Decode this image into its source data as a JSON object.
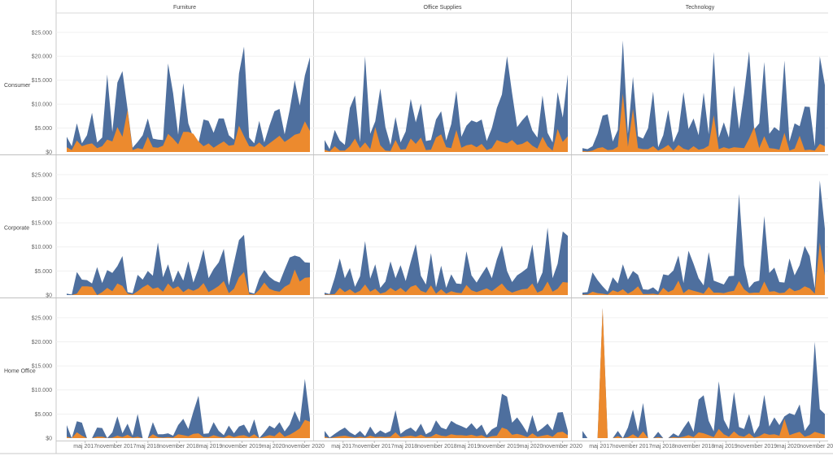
{
  "chart_data": {
    "type": "area",
    "title": "",
    "column_headers": [
      "Furniture",
      "Office Supplies",
      "Technology"
    ],
    "row_headers": [
      "Consumer",
      "Corporate",
      "Home Office"
    ],
    "y_ticks": [
      "$25.000",
      "$20.000",
      "$15.000",
      "$10.000",
      "$5.000",
      "$0"
    ],
    "ylim": [
      0,
      27000
    ],
    "x_ticks": [
      "maj 2017",
      "november 2017",
      "maj 2018",
      "november 2018",
      "maj 2019",
      "november 2019",
      "maj 2020",
      "november 2020"
    ],
    "x_range": [
      "2017-01",
      "2020-12"
    ],
    "series_colors": {
      "total": "#4e6f9e",
      "part": "#ec8a2e"
    },
    "panels": [
      {
        "row": "Consumer",
        "column": "Furniture",
        "total": [
          3200,
          1200,
          6000,
          1800,
          3500,
          8200,
          2000,
          3000,
          16200,
          4200,
          14500,
          16900,
          9000,
          900,
          2100,
          3500,
          7000,
          2800,
          2600,
          2500,
          18500,
          12300,
          3600,
          14400,
          6000,
          3000,
          1900,
          6800,
          6500,
          4000,
          7000,
          7000,
          3500,
          2600,
          16400,
          22000,
          3000,
          1800,
          6500,
          2000,
          5500,
          8500,
          9000,
          3700,
          8800,
          15000,
          9700,
          16000,
          19800
        ],
        "part": [
          1000,
          400,
          2400,
          1200,
          1600,
          1800,
          800,
          1200,
          2600,
          2200,
          5200,
          3200,
          8800,
          400,
          800,
          600,
          3200,
          1000,
          900,
          1300,
          3800,
          2800,
          1600,
          4200,
          4200,
          3800,
          2200,
          1200,
          1800,
          900,
          1600,
          2200,
          1300,
          1500,
          5500,
          3300,
          1200,
          1100,
          2000,
          1000,
          1800,
          2600,
          3400,
          2100,
          2800,
          3600,
          3900,
          6400,
          4400
        ]
      },
      {
        "row": "Consumer",
        "column": "Office Supplies",
        "total": [
          2500,
          600,
          4600,
          2400,
          1500,
          9200,
          11800,
          2100,
          20000,
          3800,
          6400,
          13300,
          5200,
          1500,
          7300,
          2000,
          4300,
          11100,
          6200,
          10100,
          2300,
          2500,
          6800,
          8500,
          2400,
          5800,
          12800,
          3200,
          5500,
          6600,
          6200,
          6800,
          2300,
          5000,
          9200,
          12000,
          20000,
          12300,
          5200,
          6600,
          7800,
          4500,
          3000,
          11800,
          4000,
          2000,
          12500,
          7200,
          16200
        ],
        "part": [
          500,
          100,
          1200,
          300,
          300,
          1200,
          2800,
          800,
          2000,
          600,
          5200,
          1400,
          300,
          200,
          2500,
          500,
          600,
          2800,
          1700,
          3000,
          400,
          500,
          3000,
          3700,
          1000,
          800,
          4600,
          900,
          1400,
          1600,
          1000,
          1700,
          400,
          800,
          2500,
          2100,
          1800,
          2500,
          1500,
          1700,
          2300,
          1300,
          700,
          3200,
          1200,
          300,
          4800,
          2100,
          3300
        ]
      },
      {
        "row": "Consumer",
        "column": "Technology",
        "total": [
          800,
          600,
          1200,
          3800,
          7600,
          7900,
          2200,
          4600,
          23300,
          3800,
          15700,
          3300,
          2800,
          5000,
          12600,
          1000,
          3500,
          8800,
          2000,
          4400,
          12500,
          4800,
          7000,
          3500,
          12400,
          3700,
          20900,
          3000,
          6200,
          3000,
          13900,
          4800,
          12300,
          21000,
          4700,
          6000,
          18800,
          3800,
          5200,
          4400,
          19100,
          2200,
          6000,
          5400,
          9500,
          9400,
          1200,
          20000,
          14000
        ],
        "part": [
          200,
          100,
          300,
          800,
          1000,
          400,
          500,
          1100,
          12200,
          1100,
          9000,
          800,
          600,
          600,
          1200,
          300,
          800,
          1500,
          300,
          1500,
          700,
          400,
          1200,
          500,
          700,
          1300,
          7700,
          600,
          1000,
          700,
          1000,
          900,
          800,
          2800,
          5200,
          800,
          3300,
          800,
          700,
          500,
          4000,
          300,
          700,
          3400,
          400,
          500,
          300,
          1700,
          1200
        ]
      },
      {
        "row": "Corporate",
        "column": "Furniture",
        "total": [
          300,
          100,
          4800,
          3200,
          3100,
          2400,
          5800,
          2500,
          5200,
          4600,
          6000,
          8100,
          600,
          400,
          4200,
          3200,
          5000,
          4000,
          10900,
          3700,
          6400,
          2600,
          5100,
          3000,
          7000,
          2600,
          5600,
          9500,
          3500,
          5400,
          6800,
          9600,
          2000,
          6700,
          11400,
          12500,
          600,
          300,
          3400,
          5200,
          3800,
          3000,
          2600,
          5300,
          7800,
          8200,
          7900,
          6800,
          6700
        ],
        "part": [
          0,
          0,
          300,
          1800,
          1800,
          1700,
          0,
          600,
          1500,
          800,
          2400,
          1900,
          300,
          100,
          800,
          1600,
          2200,
          1300,
          1600,
          700,
          2400,
          1300,
          1800,
          600,
          1300,
          900,
          1400,
          2500,
          600,
          1200,
          1900,
          2900,
          400,
          1300,
          3700,
          4800,
          200,
          100,
          1100,
          2600,
          1300,
          900,
          700,
          1700,
          2300,
          5300,
          2800,
          3600,
          3700
        ]
      },
      {
        "row": "Corporate",
        "column": "Office Supplies",
        "total": [
          500,
          200,
          3600,
          7600,
          3500,
          5600,
          1700,
          3900,
          11200,
          3400,
          6400,
          1500,
          2800,
          7000,
          3500,
          6200,
          2900,
          6900,
          10600,
          4000,
          2200,
          8700,
          1600,
          6100,
          1500,
          4300,
          2400,
          2300,
          9100,
          4100,
          2600,
          4300,
          5900,
          3500,
          7400,
          10300,
          5000,
          2700,
          4100,
          4800,
          5600,
          10500,
          2300,
          4700,
          14000,
          3500,
          6500,
          13200,
          12300
        ],
        "part": [
          100,
          100,
          200,
          1500,
          600,
          1200,
          400,
          900,
          2200,
          700,
          1300,
          300,
          600,
          1500,
          800,
          1500,
          600,
          1700,
          2100,
          900,
          500,
          2000,
          300,
          1200,
          300,
          800,
          500,
          400,
          2100,
          1000,
          600,
          1000,
          1400,
          800,
          1600,
          2400,
          1100,
          500,
          900,
          1200,
          1300,
          2400,
          500,
          1000,
          2800,
          700,
          1300,
          2700,
          2600
        ]
      },
      {
        "row": "Corporate",
        "column": "Technology",
        "total": [
          500,
          600,
          4700,
          3100,
          1800,
          700,
          3700,
          2400,
          6400,
          3200,
          5000,
          4200,
          1200,
          1100,
          1600,
          700,
          4300,
          4100,
          5100,
          8200,
          2500,
          9200,
          6500,
          3500,
          2000,
          8900,
          3000,
          2600,
          2200,
          3900,
          4000,
          21000,
          6200,
          1500,
          2700,
          3000,
          16400,
          4600,
          5700,
          2700,
          2600,
          7600,
          4100,
          6200,
          10200,
          8100,
          1400,
          23800,
          13800
        ],
        "part": [
          100,
          100,
          700,
          400,
          300,
          100,
          1000,
          600,
          1200,
          300,
          900,
          1800,
          200,
          200,
          300,
          100,
          1500,
          600,
          1100,
          3000,
          400,
          1200,
          900,
          600,
          300,
          1700,
          500,
          500,
          400,
          700,
          900,
          2900,
          1200,
          400,
          500,
          500,
          2800,
          700,
          800,
          400,
          500,
          1500,
          800,
          1100,
          1800,
          1400,
          300,
          10900,
          4000
        ]
      },
      {
        "row": "Home Office",
        "column": "Furniture",
        "total": [
          2700,
          0,
          3500,
          3200,
          0,
          0,
          2200,
          2100,
          0,
          1200,
          4500,
          1000,
          3000,
          500,
          5000,
          0,
          0,
          3300,
          800,
          800,
          1000,
          500,
          2700,
          4000,
          1900,
          5500,
          8800,
          900,
          1000,
          3300,
          1500,
          600,
          2600,
          1000,
          2400,
          2800,
          1000,
          3900,
          0,
          1200,
          2600,
          2000,
          3300,
          1400,
          2800,
          5600,
          3300,
          12300,
          4000
        ],
        "part": [
          300,
          0,
          1200,
          500,
          0,
          0,
          300,
          300,
          0,
          100,
          500,
          200,
          700,
          100,
          300,
          0,
          0,
          800,
          200,
          100,
          200,
          100,
          800,
          600,
          400,
          900,
          1000,
          200,
          200,
          600,
          300,
          100,
          600,
          200,
          500,
          600,
          200,
          800,
          0,
          300,
          600,
          400,
          1300,
          300,
          700,
          1300,
          2000,
          3800,
          3400
        ]
      },
      {
        "row": "Home Office",
        "column": "Office Supplies",
        "total": [
          1500,
          100,
          900,
          1600,
          2200,
          1200,
          600,
          1500,
          400,
          2400,
          800,
          1600,
          1000,
          1500,
          5800,
          900,
          1700,
          2200,
          1300,
          3000,
          800,
          1400,
          3700,
          2200,
          1800,
          3600,
          2900,
          2500,
          2000,
          3100,
          1800,
          2800,
          600,
          1800,
          2400,
          9200,
          8600,
          3200,
          4300,
          2800,
          1100,
          4800,
          1300,
          2100,
          3000,
          1600,
          5300,
          5400,
          1500
        ],
        "part": [
          300,
          0,
          200,
          400,
          500,
          300,
          100,
          300,
          100,
          500,
          200,
          300,
          200,
          300,
          1200,
          200,
          400,
          500,
          300,
          700,
          200,
          300,
          900,
          500,
          400,
          800,
          600,
          600,
          500,
          700,
          400,
          600,
          100,
          400,
          500,
          2200,
          1800,
          700,
          900,
          600,
          200,
          1000,
          300,
          500,
          700,
          300,
          1200,
          1300,
          600
        ]
      },
      {
        "row": "Home Office",
        "column": "Technology",
        "total": [
          1500,
          0,
          0,
          0,
          27300,
          0,
          0,
          1500,
          0,
          2200,
          5900,
          1400,
          7300,
          0,
          0,
          1300,
          0,
          0,
          1000,
          400,
          2100,
          3600,
          1300,
          8000,
          8900,
          3600,
          1400,
          11800,
          3800,
          1800,
          9600,
          2300,
          1900,
          5000,
          900,
          2600,
          9000,
          2400,
          4300,
          2700,
          4500,
          5200,
          4800,
          7000,
          1500,
          3000,
          20000,
          6000,
          5000
        ],
        "part": [
          0,
          0,
          0,
          0,
          27000,
          0,
          0,
          400,
          0,
          200,
          800,
          100,
          1400,
          0,
          0,
          200,
          0,
          0,
          200,
          100,
          300,
          600,
          200,
          1200,
          1000,
          600,
          200,
          1900,
          800,
          300,
          1400,
          500,
          300,
          1000,
          100,
          400,
          1000,
          700,
          800,
          500,
          4000,
          600,
          1000,
          1300,
          300,
          600,
          1300,
          1000,
          700
        ]
      }
    ]
  }
}
